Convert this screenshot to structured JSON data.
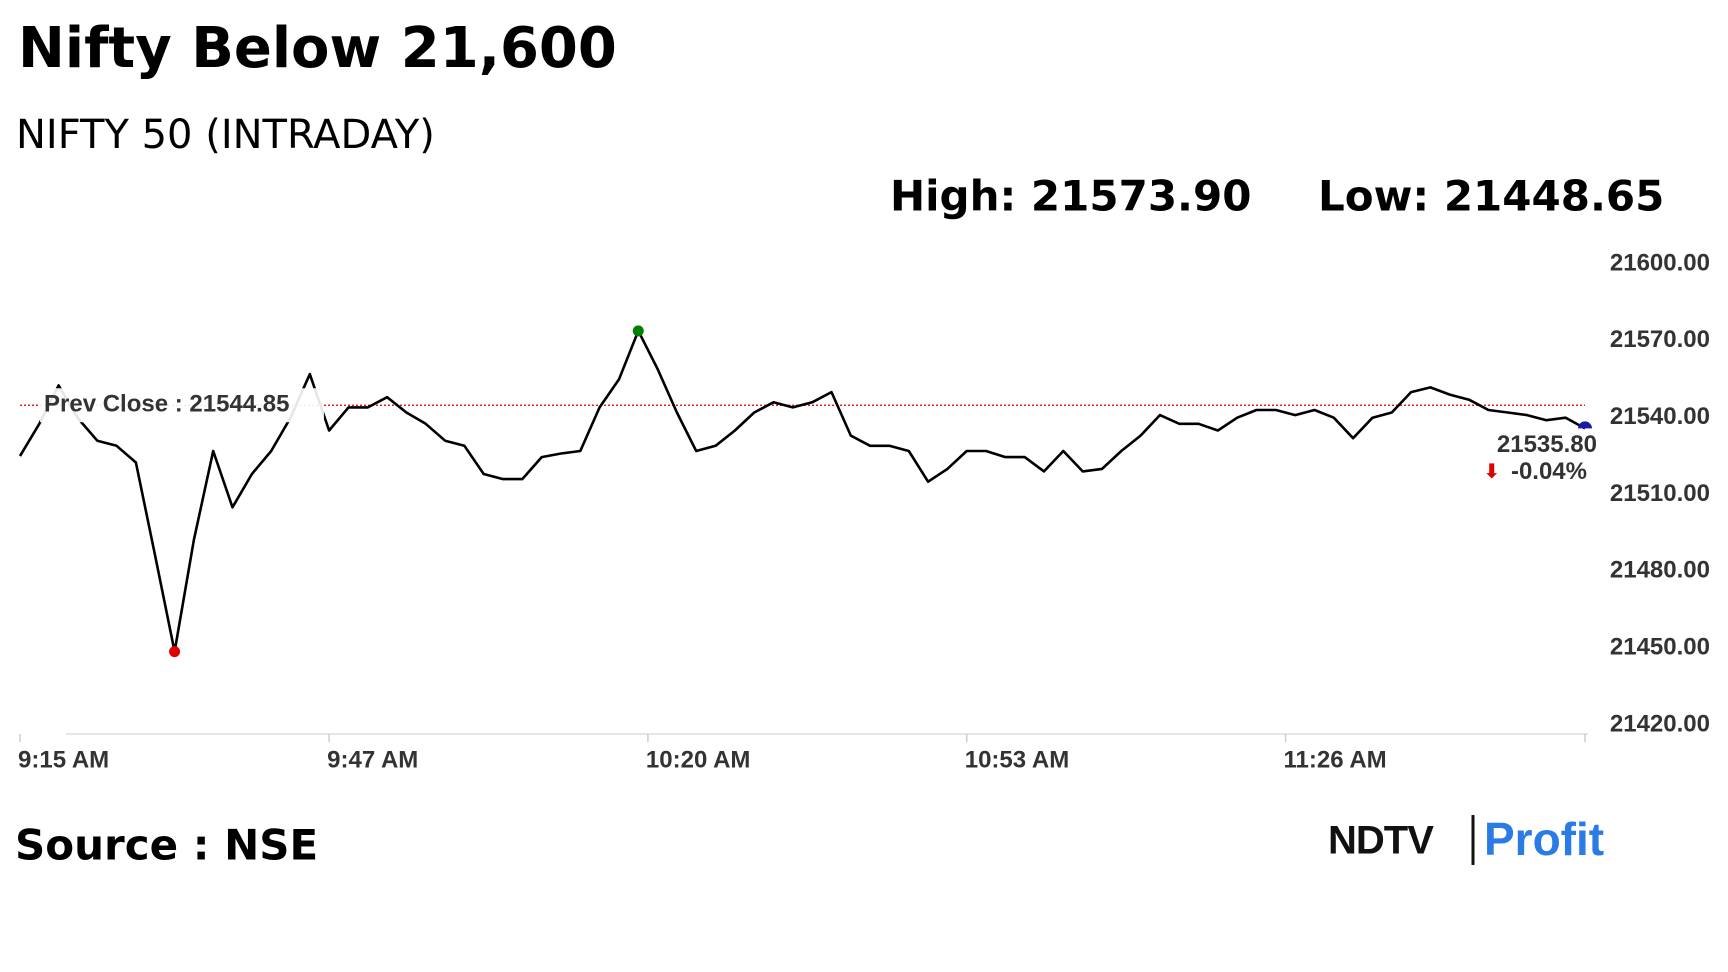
{
  "chart_data": {
    "type": "line",
    "title": "Nifty Below 21,600",
    "subtitle": "NIFTY 50 (INTRADAY)",
    "high_label": "High: 21573.90",
    "high": 21573.9,
    "low_label": "Low: 21448.65",
    "low": 21448.65,
    "prev_close": {
      "value": 21544.85,
      "label": "Prev Close : 21544.85"
    },
    "last": {
      "value": 21535.8,
      "label": "21535.80"
    },
    "change": {
      "value": -0.04,
      "label": "-0.04%"
    },
    "source": "Source : NSE",
    "logo": {
      "left": "NDTV",
      "right": "Profit"
    },
    "x": [
      "9:15 AM",
      "9:17 AM",
      "9:19 AM",
      "9:21 AM",
      "9:23 AM",
      "9:25 AM",
      "9:27 AM",
      "9:29 AM",
      "9:31 AM",
      "9:33 AM",
      "9:35 AM",
      "9:37 AM",
      "9:39 AM",
      "9:41 AM",
      "9:43 AM",
      "9:45 AM",
      "9:47 AM",
      "9:49 AM",
      "9:51 AM",
      "9:53 AM",
      "9:55 AM",
      "9:57 AM",
      "9:59 AM",
      "10:01 AM",
      "10:03 AM",
      "10:05 AM",
      "10:07 AM",
      "10:09 AM",
      "10:11 AM",
      "10:13 AM",
      "10:15 AM",
      "10:17 AM",
      "10:19 AM",
      "10:21 AM",
      "10:23 AM",
      "10:25 AM",
      "10:27 AM",
      "10:29 AM",
      "10:31 AM",
      "10:33 AM",
      "10:35 AM",
      "10:37 AM",
      "10:39 AM",
      "10:41 AM",
      "10:43 AM",
      "10:45 AM",
      "10:47 AM",
      "10:49 AM",
      "10:51 AM",
      "10:53 AM",
      "10:55 AM",
      "10:57 AM",
      "10:59 AM",
      "11:01 AM",
      "11:03 AM",
      "11:05 AM",
      "11:07 AM",
      "11:09 AM",
      "11:11 AM",
      "11:13 AM",
      "11:15 AM",
      "11:17 AM",
      "11:19 AM",
      "11:21 AM",
      "11:23 AM",
      "11:25 AM",
      "11:27 AM",
      "11:29 AM",
      "11:31 AM",
      "11:33 AM",
      "11:35 AM",
      "11:37 AM",
      "11:39 AM",
      "11:41 AM",
      "11:43 AM",
      "11:45 AM",
      "11:47 AM",
      "11:49 AM",
      "11:51 AM",
      "11:53 AM",
      "11:55 AM",
      "11:57 AM"
    ],
    "series": [
      {
        "name": "NIFTY 50",
        "color": "#000000",
        "values": [
          21525.0,
          21537.6,
          21552.6,
          21539.7,
          21531.0,
          21529.0,
          21522.5,
          21486.0,
          21448.65,
          21492.3,
          21527.0,
          21505.0,
          21518.0,
          21527.0,
          21540.0,
          21557.0,
          21535.0,
          21544.0,
          21544.0,
          21548.0,
          21542.0,
          21537.6,
          21531.0,
          21529.0,
          21518.0,
          21516.0,
          21516.0,
          21524.6,
          21526.0,
          21527.0,
          21544.0,
          21555.0,
          21573.9,
          21559.0,
          21542.0,
          21527.0,
          21529.0,
          21535.0,
          21542.0,
          21546.0,
          21544.0,
          21546.0,
          21550.0,
          21533.0,
          21529.0,
          21529.0,
          21527.0,
          21515.0,
          21520.0,
          21527.0,
          21527.0,
          21524.6,
          21524.6,
          21519.0,
          21527.0,
          21519.0,
          21520.0,
          21527.0,
          21533.0,
          21541.0,
          21537.6,
          21537.6,
          21535.0,
          21540.0,
          21543.0,
          21543.0,
          21541.0,
          21543.0,
          21540.0,
          21532.0,
          21540.0,
          21542.0,
          21550.0,
          21551.8,
          21549.0,
          21547.0,
          21543.0,
          21542.0,
          21541.0,
          21539.0,
          21540.0,
          21535.8
        ]
      }
    ],
    "xlim": [
      "9:15 AM",
      "11:57 AM"
    ],
    "xticks": [
      "9:15 AM",
      "9:47 AM",
      "10:20 AM",
      "10:53 AM",
      "11:26 AM"
    ],
    "ylim": [
      21420,
      21600
    ],
    "yticks": [
      {
        "value": 21420,
        "label": "21420.00"
      },
      {
        "value": 21450,
        "label": "21450.00"
      },
      {
        "value": 21480,
        "label": "21480.00"
      },
      {
        "value": 21510,
        "label": "21510.00"
      },
      {
        "value": 21540,
        "label": "21540.00"
      },
      {
        "value": 21570,
        "label": "21570.00"
      },
      {
        "value": 21600,
        "label": "21600.00"
      }
    ],
    "high_color": "#008000",
    "low_color": "#e00000",
    "last_color": "#1a1aa8",
    "prev_close_color": "#cc0000"
  }
}
